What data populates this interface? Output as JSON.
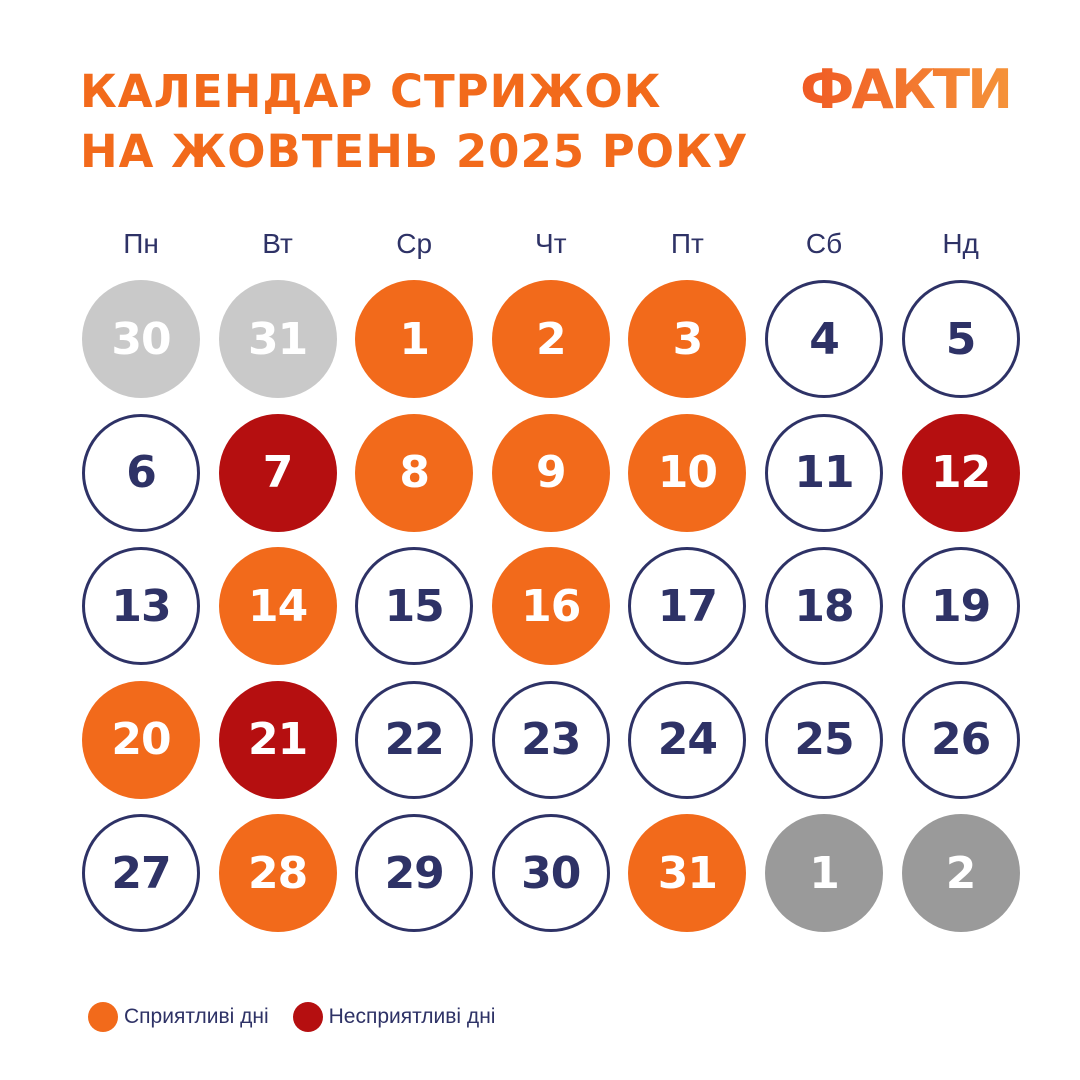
{
  "header": {
    "title_line1": "КАЛЕНДАР СТРИЖОК",
    "title_line2": "НА ЖОВТЕНЬ 2025 РОКУ",
    "logo_text": "ФАКТИ"
  },
  "colors": {
    "accent_orange": "#f26a1b",
    "accent_red": "#b50f10",
    "navy": "#2e3266",
    "gray_light": "#c9c9c9",
    "gray_dark": "#9a9a9a"
  },
  "weekdays": [
    "Пн",
    "Вт",
    "Ср",
    "Чт",
    "Пт",
    "Сб",
    "Нд"
  ],
  "calendar": {
    "weeks": [
      [
        {
          "day": "30",
          "status": "prev-month"
        },
        {
          "day": "31",
          "status": "prev-month"
        },
        {
          "day": "1",
          "status": "favorable"
        },
        {
          "day": "2",
          "status": "favorable"
        },
        {
          "day": "3",
          "status": "favorable"
        },
        {
          "day": "4",
          "status": "neutral"
        },
        {
          "day": "5",
          "status": "neutral"
        }
      ],
      [
        {
          "day": "6",
          "status": "neutral"
        },
        {
          "day": "7",
          "status": "unfavorable"
        },
        {
          "day": "8",
          "status": "favorable"
        },
        {
          "day": "9",
          "status": "favorable"
        },
        {
          "day": "10",
          "status": "favorable"
        },
        {
          "day": "11",
          "status": "neutral"
        },
        {
          "day": "12",
          "status": "unfavorable"
        }
      ],
      [
        {
          "day": "13",
          "status": "neutral"
        },
        {
          "day": "14",
          "status": "favorable"
        },
        {
          "day": "15",
          "status": "neutral"
        },
        {
          "day": "16",
          "status": "favorable"
        },
        {
          "day": "17",
          "status": "neutral"
        },
        {
          "day": "18",
          "status": "neutral"
        },
        {
          "day": "19",
          "status": "neutral"
        }
      ],
      [
        {
          "day": "20",
          "status": "favorable"
        },
        {
          "day": "21",
          "status": "unfavorable"
        },
        {
          "day": "22",
          "status": "neutral"
        },
        {
          "day": "23",
          "status": "neutral"
        },
        {
          "day": "24",
          "status": "neutral"
        },
        {
          "day": "25",
          "status": "neutral"
        },
        {
          "day": "26",
          "status": "neutral"
        }
      ],
      [
        {
          "day": "27",
          "status": "neutral"
        },
        {
          "day": "28",
          "status": "favorable"
        },
        {
          "day": "29",
          "status": "neutral"
        },
        {
          "day": "30",
          "status": "neutral"
        },
        {
          "day": "31",
          "status": "favorable"
        },
        {
          "day": "1",
          "status": "next-month"
        },
        {
          "day": "2",
          "status": "next-month"
        }
      ]
    ]
  },
  "legend": {
    "favorable_label": "Сприятливі дні",
    "unfavorable_label": "Несприятливі дні"
  }
}
